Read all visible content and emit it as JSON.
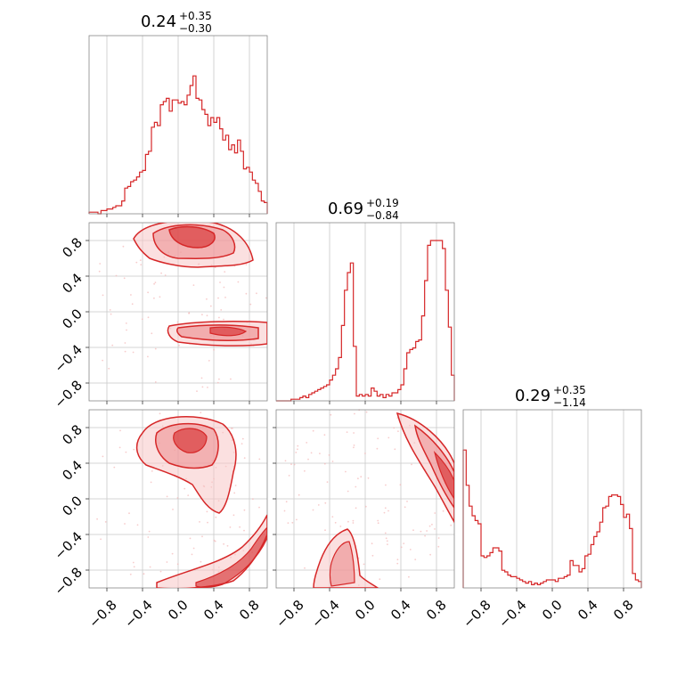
{
  "chart_data": {
    "type": "corner",
    "color": "#d62728",
    "grid": true,
    "params": [
      {
        "median": "0.24",
        "plus": "+0.35",
        "minus": "−0.30"
      },
      {
        "median": "0.69",
        "plus": "+0.19",
        "minus": "−0.84"
      },
      {
        "median": "0.29",
        "plus": "+0.35",
        "minus": "−1.14"
      }
    ],
    "range": [
      -1.0,
      1.0
    ],
    "ticks": [
      -0.8,
      -0.4,
      0.0,
      0.4,
      0.8
    ],
    "tick_labels": [
      "−0.8",
      "−0.4",
      "0.0",
      "0.4",
      "0.8"
    ],
    "histograms": [
      [
        0.01,
        0.01,
        0.01,
        0.0,
        0.02,
        0.02,
        0.03,
        0.03,
        0.04,
        0.05,
        0.05,
        0.08,
        0.16,
        0.17,
        0.2,
        0.21,
        0.23,
        0.26,
        0.27,
        0.37,
        0.39,
        0.54,
        0.57,
        0.55,
        0.68,
        0.7,
        0.72,
        0.64,
        0.71,
        0.71,
        0.69,
        0.7,
        0.68,
        0.74,
        0.8,
        0.86,
        0.72,
        0.71,
        0.65,
        0.62,
        0.55,
        0.6,
        0.57,
        0.6,
        0.53,
        0.46,
        0.49,
        0.4,
        0.43,
        0.38,
        0.46,
        0.39,
        0.28,
        0.29,
        0.26,
        0.21,
        0.19,
        0.14,
        0.08,
        0.07
      ],
      [
        0.0,
        0.0,
        0.0,
        0.0,
        0.0,
        0.01,
        0.01,
        0.01,
        0.02,
        0.03,
        0.02,
        0.04,
        0.05,
        0.06,
        0.07,
        0.08,
        0.09,
        0.1,
        0.13,
        0.16,
        0.2,
        0.27,
        0.47,
        0.69,
        0.8,
        0.86,
        0.34,
        0.03,
        0.04,
        0.03,
        0.04,
        0.03,
        0.08,
        0.06,
        0.03,
        0.04,
        0.02,
        0.04,
        0.03,
        0.05,
        0.05,
        0.07,
        0.1,
        0.2,
        0.3,
        0.32,
        0.33,
        0.37,
        0.38,
        0.53,
        0.75,
        0.97,
        1.0,
        1.0,
        1.0,
        1.0,
        0.95,
        0.69,
        0.46,
        0.16
      ],
      [
        0.86,
        0.64,
        0.51,
        0.45,
        0.42,
        0.4,
        0.2,
        0.19,
        0.2,
        0.22,
        0.25,
        0.25,
        0.23,
        0.11,
        0.1,
        0.08,
        0.07,
        0.07,
        0.06,
        0.05,
        0.04,
        0.03,
        0.04,
        0.02,
        0.03,
        0.02,
        0.03,
        0.04,
        0.05,
        0.05,
        0.05,
        0.04,
        0.06,
        0.06,
        0.07,
        0.08,
        0.17,
        0.14,
        0.14,
        0.1,
        0.12,
        0.2,
        0.21,
        0.27,
        0.32,
        0.35,
        0.41,
        0.5,
        0.51,
        0.57,
        0.58,
        0.58,
        0.57,
        0.52,
        0.44,
        0.46,
        0.37,
        0.09,
        0.05,
        0.04
      ]
    ]
  }
}
